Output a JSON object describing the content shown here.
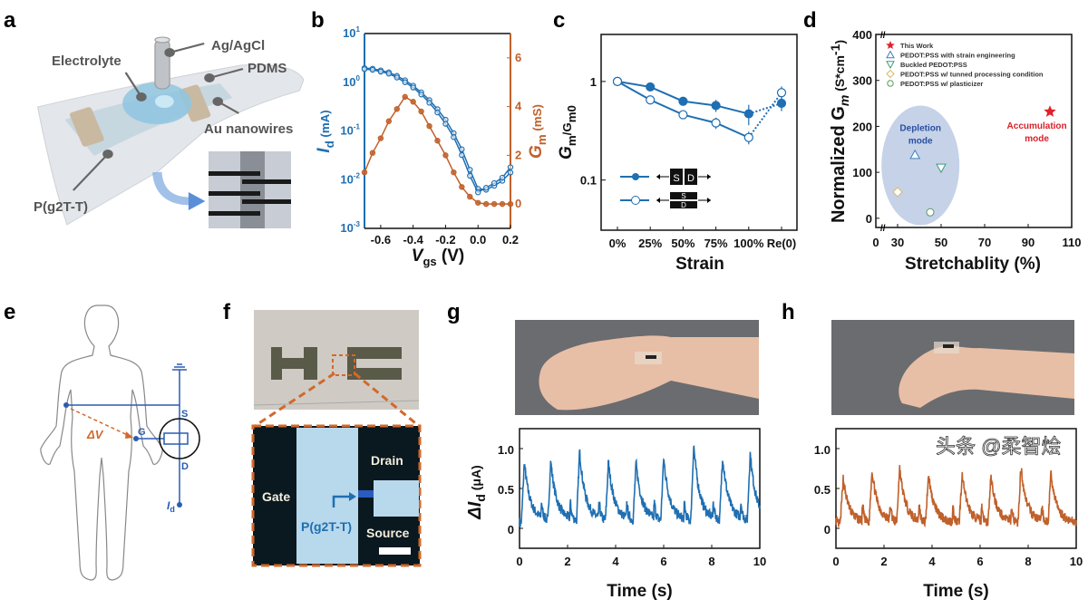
{
  "panels": {
    "a": {
      "letter": "a",
      "labels": {
        "agagcl": "Ag/AgCl",
        "electrolyte": "Electrolyte",
        "pdms": "PDMS",
        "au": "Au nanowires",
        "polymer": "P(g2T-T)"
      }
    },
    "b": {
      "letter": "b"
    },
    "c": {
      "letter": "c",
      "legend_s": "S",
      "legend_d": "D"
    },
    "d": {
      "letter": "d",
      "depletion": "Depletion",
      "depletion2": "mode",
      "accumulation": "Accumulation",
      "accumulation2": "mode"
    },
    "e": {
      "letter": "e",
      "s": "S",
      "g": "G",
      "d": "D",
      "dv": "ΔV",
      "id": "I",
      "id_sub": "d"
    },
    "f": {
      "letter": "f",
      "gate": "Gate",
      "drain": "Drain",
      "source": "Source",
      "polymer": "P(g2T-T)"
    },
    "g": {
      "letter": "g"
    },
    "h": {
      "letter": "h"
    }
  },
  "watermark": "头条 @柔智烩",
  "colors": {
    "blue": "#1f6fb2",
    "orange": "#c0602a",
    "red": "#e0202a",
    "dashed_orange": "#d2692a"
  },
  "chart_data": [
    {
      "id": "b",
      "type": "line",
      "xlabel": "Vgs (V)",
      "xlabel_main": "V",
      "xlabel_sub": "gs",
      "xlabel_unit": " (V)",
      "ylabel_main": "I",
      "ylabel_sub": "d",
      "ylabel_unit": " (mA)",
      "y2label_main": "G",
      "y2label_sub": "m",
      "y2label_unit": " (mS)",
      "xlim": [
        -0.7,
        0.2
      ],
      "xticks": [
        -0.6,
        -0.4,
        -0.2,
        0.0,
        0.2
      ],
      "xtick_labels": [
        "-0.6",
        "-0.4",
        "-0.2",
        "0.0",
        "0.2"
      ],
      "yscale": "log",
      "ylim": [
        0.001,
        10
      ],
      "yticks_exp": [
        -3,
        -2,
        -1,
        0,
        1
      ],
      "y2lim": [
        -1,
        7
      ],
      "y2ticks": [
        0,
        2,
        4,
        6
      ],
      "y2tick_labels": [
        "0",
        "2",
        "4",
        "6"
      ],
      "x": [
        -0.7,
        -0.65,
        -0.6,
        -0.55,
        -0.5,
        -0.45,
        -0.4,
        -0.35,
        -0.3,
        -0.25,
        -0.2,
        -0.15,
        -0.1,
        -0.05,
        0.0,
        0.05,
        0.1,
        0.15,
        0.2
      ],
      "series": [
        {
          "axis": "left",
          "color": "#1f6fb2",
          "values": [
            1.95,
            1.9,
            1.75,
            1.6,
            1.35,
            1.1,
            0.85,
            0.62,
            0.43,
            0.28,
            0.17,
            0.09,
            0.042,
            0.016,
            0.0065,
            0.0062,
            0.0075,
            0.0095,
            0.014
          ]
        },
        {
          "axis": "left",
          "color": "#1f6fb2",
          "values": [
            1.85,
            1.8,
            1.65,
            1.5,
            1.25,
            1.0,
            0.78,
            0.56,
            0.38,
            0.24,
            0.14,
            0.075,
            0.032,
            0.012,
            0.0055,
            0.0068,
            0.0085,
            0.011,
            0.018
          ]
        },
        {
          "axis": "right",
          "color": "#c0602a",
          "values": [
            1.3,
            2.1,
            2.7,
            3.4,
            3.9,
            4.4,
            4.2,
            3.8,
            3.2,
            2.6,
            2.0,
            1.3,
            0.7,
            0.3,
            0.05,
            0.0,
            0.0,
            0.0,
            0.0
          ]
        }
      ]
    },
    {
      "id": "c",
      "type": "line",
      "xlabel": "Strain",
      "ylabel_main": "G",
      "ylabel_sub": "m",
      "ylabel_mid": "/G",
      "ylabel_sub2": "m0",
      "categories": [
        "0%",
        "25%",
        "50%",
        "75%",
        "100%",
        "Re(0)"
      ],
      "yscale": "log",
      "ylim": [
        0.031,
        3
      ],
      "yticks": [
        0.1,
        1
      ],
      "ytick_labels": [
        "0.1",
        "1"
      ],
      "series": [
        {
          "marker": "filled-circle",
          "color": "#1f6fb2",
          "values": [
            1.0,
            0.88,
            0.63,
            0.57,
            0.47,
            0.6
          ],
          "errors": [
            0.02,
            0.08,
            0.06,
            0.08,
            0.11,
            0.1
          ]
        },
        {
          "marker": "open-circle",
          "color": "#1f6fb2",
          "values": [
            1.0,
            0.65,
            0.46,
            0.38,
            0.27,
            0.77
          ],
          "errors": [
            0.02,
            0.04,
            0.03,
            0.05,
            0.04,
            0.12
          ]
        }
      ],
      "last_segment": "dotted"
    },
    {
      "id": "d",
      "type": "scatter",
      "xlabel": "Stretchablity (%)",
      "ylabel_main": "Normalized G",
      "ylabel_sub": "m",
      "ylabel_unit": " (S*cm",
      "ylabel_sup": "-1",
      "ylabel_close": ")",
      "xlim": [
        20,
        110
      ],
      "xticks": [
        30,
        50,
        70,
        90,
        110
      ],
      "xtick_labels": [
        "30",
        "50",
        "70",
        "90",
        "110"
      ],
      "x_break_label": "0",
      "ylim": [
        -20,
        400
      ],
      "yticks": [
        0,
        100,
        200,
        300,
        400
      ],
      "ytick_labels": [
        "0",
        "100",
        "200",
        "300",
        "400"
      ],
      "legend_position": "top-left",
      "points": [
        {
          "name": "This Work",
          "marker": "star",
          "color": "#e0202a",
          "x": 100,
          "y": 232
        },
        {
          "name": "PEDOT:PSS with strain engineering",
          "marker": "triangle-up",
          "color": "#3a7fc0",
          "x": 38,
          "y": 138
        },
        {
          "name": "Buckled PEDOT:PSS",
          "marker": "triangle-down",
          "color": "#3f9a7a",
          "x": 50,
          "y": 110
        },
        {
          "name": "PEDOT:PSS w/ tunned processing condition",
          "marker": "diamond",
          "color": "#d9b860",
          "x": 30,
          "y": 57
        },
        {
          "name": "PEDOT:PSS w/ plasticizer",
          "marker": "circle",
          "color": "#5a9a5a",
          "x": 45,
          "y": 13
        }
      ]
    },
    {
      "id": "g",
      "type": "line",
      "color": "#1f6fb2",
      "xlabel": "Time (s)",
      "ylabel_main": "ΔI",
      "ylabel_sub": "d",
      "ylabel_unit": " (μA)",
      "xlim": [
        0,
        10
      ],
      "xticks": [
        0,
        2,
        4,
        6,
        8,
        10
      ],
      "ylim": [
        -0.25,
        1.25
      ],
      "yticks": [
        0,
        0.5,
        1.0
      ],
      "ytick_labels": [
        "0",
        "0.5",
        "1.0"
      ],
      "baseline": 0.08,
      "peak_times": [
        0.2,
        1.3,
        2.5,
        3.7,
        4.85,
        6.0,
        7.25,
        8.45,
        9.6
      ],
      "peak_values": [
        0.83,
        0.82,
        0.95,
        0.81,
        0.8,
        0.86,
        1.03,
        0.88,
        0.92
      ]
    },
    {
      "id": "h",
      "type": "line",
      "color": "#c0602a",
      "xlabel": "Time (s)",
      "xlim": [
        0,
        10
      ],
      "xticks": [
        0,
        2,
        4,
        6,
        8,
        10
      ],
      "ylim": [
        -0.25,
        1.25
      ],
      "yticks": [
        0,
        0.5,
        1.0
      ],
      "ytick_labels": [
        "0",
        "0.5",
        "1.0"
      ],
      "baseline": 0.06,
      "peak_times": [
        0.3,
        1.5,
        2.65,
        3.85,
        5.25,
        6.45,
        7.7,
        8.95
      ],
      "peak_values": [
        0.63,
        0.72,
        0.74,
        0.66,
        0.66,
        0.63,
        0.76,
        0.67
      ]
    }
  ]
}
